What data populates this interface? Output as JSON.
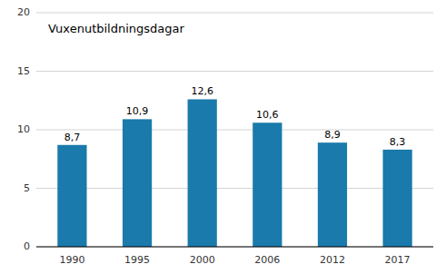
{
  "chart_data": {
    "type": "bar",
    "title": "Vuxenutbildningsdagar",
    "categories": [
      "1990",
      "1995",
      "2000",
      "2006",
      "2012",
      "2017"
    ],
    "values": [
      8.7,
      10.9,
      12.6,
      10.6,
      8.9,
      8.3
    ],
    "value_labels": [
      "8,7",
      "10,9",
      "12,6",
      "10,6",
      "8,9",
      "8,3"
    ],
    "data_labels": true,
    "color": "#1a7aab",
    "ylim": [
      0,
      20
    ],
    "yticks": [
      0,
      5,
      10,
      15,
      20
    ],
    "grid": true
  }
}
